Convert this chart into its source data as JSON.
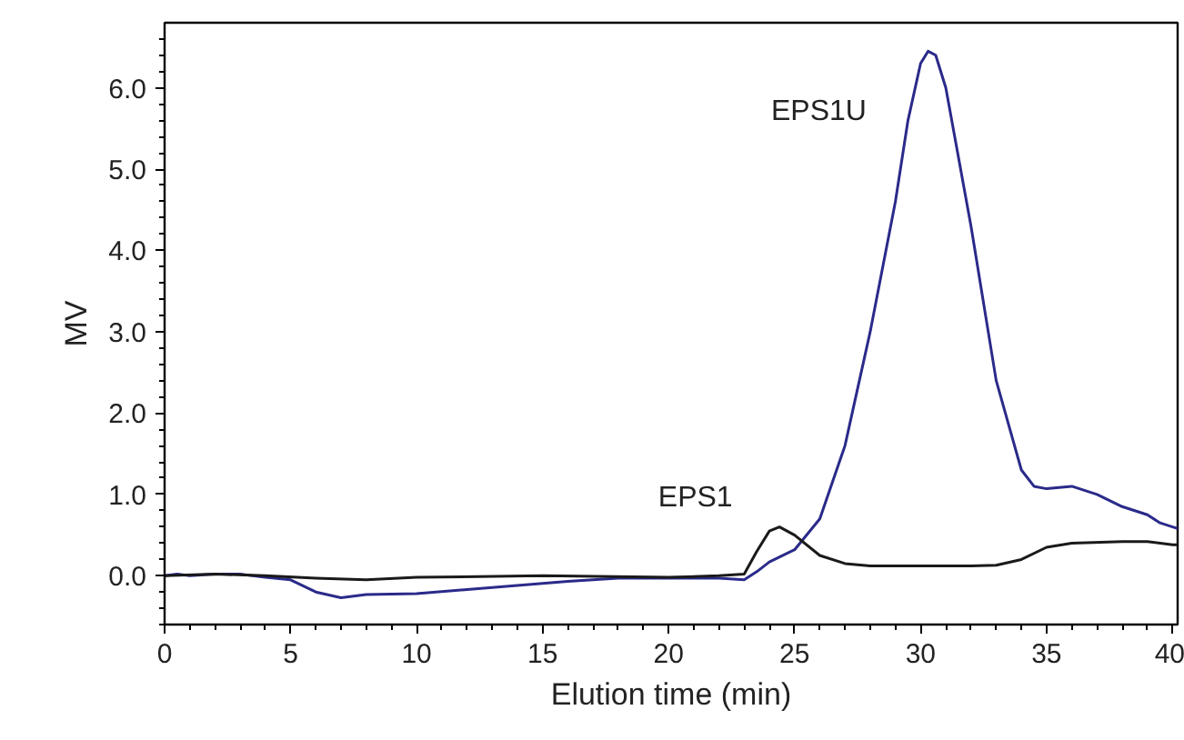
{
  "chart_data": {
    "type": "line",
    "xlabel": "Elution time (min)",
    "ylabel": "MV",
    "xlim": [
      0,
      40.2
    ],
    "ylim": [
      -0.6,
      6.8
    ],
    "xticks": [
      0,
      5,
      10,
      15,
      20,
      25,
      30,
      35,
      40
    ],
    "yticks": [
      {
        "value": 0,
        "label": "0.0"
      },
      {
        "value": 1,
        "label": "1.0"
      },
      {
        "value": 2,
        "label": "2.0"
      },
      {
        "value": 3,
        "label": "3.0"
      },
      {
        "value": 4,
        "label": "4.0"
      },
      {
        "value": 5,
        "label": "5.0"
      },
      {
        "value": 6,
        "label": "6.0"
      }
    ],
    "grid": false,
    "legend": false,
    "marker": "none",
    "line_style": "solid",
    "series": [
      {
        "name": "EPS1U",
        "color": "#2a2a8a",
        "x": [
          0,
          0.5,
          1,
          2,
          3,
          4,
          5,
          6,
          7,
          8,
          10,
          12,
          14,
          16,
          18,
          20,
          22,
          23,
          23.5,
          24,
          25,
          26,
          27,
          28,
          29,
          29.5,
          30,
          30.3,
          30.6,
          31,
          32,
          33,
          34,
          34.5,
          35,
          36,
          37,
          38,
          39,
          39.5,
          40,
          40.2
        ],
        "values": [
          0,
          0.02,
          0,
          0.02,
          0.02,
          -0.02,
          -0.05,
          -0.2,
          -0.27,
          -0.23,
          -0.22,
          -0.17,
          -0.12,
          -0.07,
          -0.03,
          -0.03,
          -0.03,
          -0.05,
          0.05,
          0.17,
          0.32,
          0.7,
          1.6,
          3.0,
          4.6,
          5.6,
          6.3,
          6.45,
          6.4,
          6.0,
          4.3,
          2.4,
          1.3,
          1.1,
          1.07,
          1.1,
          1.0,
          0.85,
          0.75,
          0.65,
          0.6,
          0.58
        ]
      },
      {
        "name": "EPS1",
        "color": "#1a1a1a",
        "x": [
          0,
          2,
          4,
          6,
          8,
          10,
          15,
          20,
          22,
          23,
          23.5,
          24,
          24.4,
          25,
          26,
          27,
          28,
          30,
          32,
          33,
          34,
          35,
          36,
          38,
          39,
          40,
          40.2
        ],
        "values": [
          0,
          0.02,
          0,
          -0.03,
          -0.05,
          -0.02,
          0,
          -0.02,
          0,
          0.02,
          0.3,
          0.55,
          0.6,
          0.5,
          0.25,
          0.15,
          0.12,
          0.12,
          0.12,
          0.13,
          0.2,
          0.35,
          0.4,
          0.42,
          0.42,
          0.38,
          0.38
        ]
      }
    ]
  }
}
